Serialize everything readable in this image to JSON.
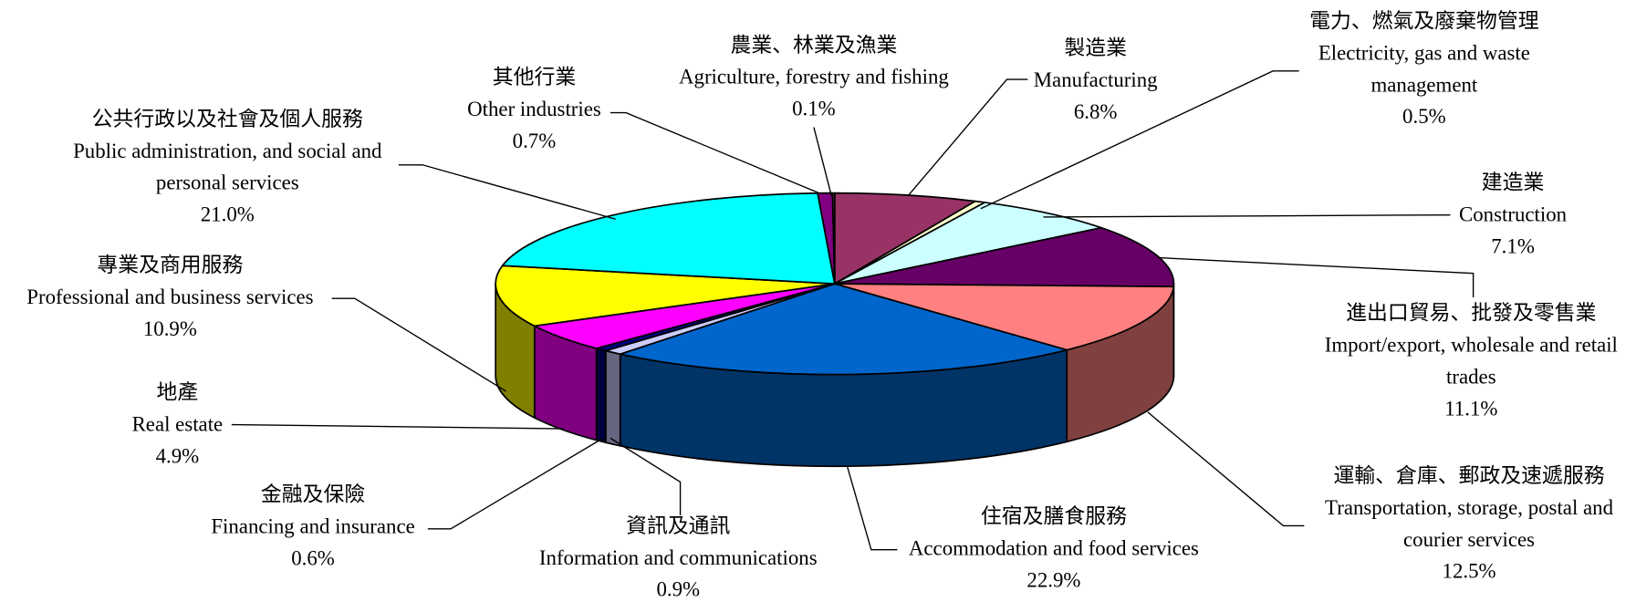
{
  "chart_data": {
    "type": "pie3d",
    "slices": [
      {
        "zh": "製造業",
        "en": [
          "Manufacturing"
        ],
        "color": "#993366"
      },
      {
        "zh": "電力、燃氣及廢棄物管理",
        "en": [
          "Electricity, gas and waste",
          "management"
        ],
        "color": "#FFFFCC"
      },
      {
        "zh": "建造業",
        "en": [
          "Construction"
        ],
        "color": "#CCFFFF"
      },
      {
        "zh": "進出口貿易、批發及零售業",
        "en": [
          "Import/export, wholesale and retail",
          "trades"
        ],
        "color": "#660066"
      },
      {
        "zh": "運輸、倉庫、郵政及速遞服務",
        "en": [
          "Transportation, storage, postal and",
          "courier services"
        ],
        "color": "#FF8080"
      },
      {
        "zh": "住宿及膳食服務",
        "en": [
          "Accommodation and food services"
        ],
        "color": "#0066CC"
      },
      {
        "zh": "資訊及通訊",
        "en": [
          "Information and communications"
        ],
        "color": "#CCCCFF"
      },
      {
        "zh": "金融及保險",
        "en": [
          "Financing and insurance"
        ],
        "color": "#000080"
      },
      {
        "zh": "地產",
        "en": [
          "Real estate"
        ],
        "color": "#FF00FF"
      },
      {
        "zh": "專業及商用服務",
        "en": [
          "Professional and business services"
        ],
        "color": "#FFFF00"
      },
      {
        "zh": "公共行政以及社會及個人服務",
        "en": [
          "Public administration, and social and",
          "personal services"
        ],
        "color": "#00FFFF"
      },
      {
        "zh": "其他行業",
        "en": [
          "Other industries"
        ],
        "color": "#800080"
      },
      {
        "zh": "農業、林業及漁業",
        "en": [
          "Agriculture, forestry and fishing"
        ],
        "color": "#993366"
      }
    ],
    "values": [
      6.8,
      0.5,
      7.1,
      11.1,
      12.5,
      22.9,
      0.9,
      0.6,
      4.9,
      10.9,
      21.0,
      0.7,
      0.1
    ],
    "value_labels": [
      "6.8%",
      "0.5%",
      "7.1%",
      "11.1%",
      "12.5%",
      "22.9%",
      "0.9%",
      "0.6%",
      "4.9%",
      "10.9%",
      "21.0%",
      "0.7%",
      "0.1%"
    ]
  }
}
